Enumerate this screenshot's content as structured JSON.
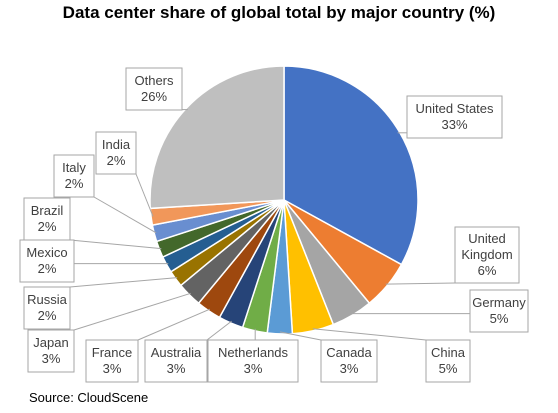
{
  "chart_data": {
    "type": "pie",
    "title": "Data center share of global total by major country (%)",
    "source": "Source: CloudScene",
    "slices": [
      {
        "label": "United States",
        "value": 33,
        "display": "33%",
        "color": "#4472c4"
      },
      {
        "label": "United Kingdom",
        "value": 6,
        "display": "6%",
        "color": "#ed7d31"
      },
      {
        "label": "Germany",
        "value": 5,
        "display": "5%",
        "color": "#a5a5a5"
      },
      {
        "label": "China",
        "value": 5,
        "display": "5%",
        "color": "#ffc000"
      },
      {
        "label": "Canada",
        "value": 3,
        "display": "3%",
        "color": "#5b9bd5"
      },
      {
        "label": "Netherlands",
        "value": 3,
        "display": "3%",
        "color": "#70ad47"
      },
      {
        "label": "Australia",
        "value": 3,
        "display": "3%",
        "color": "#264478"
      },
      {
        "label": "France",
        "value": 3,
        "display": "3%",
        "color": "#9e480e"
      },
      {
        "label": "Japan",
        "value": 3,
        "display": "3%",
        "color": "#636363"
      },
      {
        "label": "Russia",
        "value": 2,
        "display": "2%",
        "color": "#997300"
      },
      {
        "label": "Mexico",
        "value": 2,
        "display": "2%",
        "color": "#255e91"
      },
      {
        "label": "Brazil",
        "value": 2,
        "display": "2%",
        "color": "#43682b"
      },
      {
        "label": "Italy",
        "value": 2,
        "display": "2%",
        "color": "#698ed0"
      },
      {
        "label": "India",
        "value": 2,
        "display": "2%",
        "color": "#f1975a"
      },
      {
        "label": "Others",
        "value": 26,
        "display": "26%",
        "color": "#bfbfbf"
      }
    ]
  }
}
